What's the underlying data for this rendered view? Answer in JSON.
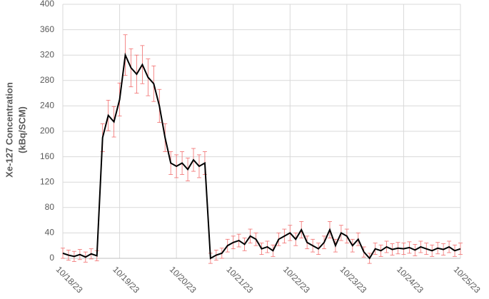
{
  "chart_data": {
    "type": "line",
    "ylabel": [
      "Xe-127 Concentration",
      "(kBq/SCM)"
    ],
    "xlim": [
      0,
      7
    ],
    "xticks": [
      {
        "value": 0,
        "label": "10/18/23"
      },
      {
        "value": 1,
        "label": "10/19/23"
      },
      {
        "value": 2,
        "label": "10/20/23"
      },
      {
        "value": 3,
        "label": "10/21/23"
      },
      {
        "value": 4,
        "label": "10/22/23"
      },
      {
        "value": 5,
        "label": "10/23/23"
      },
      {
        "value": 6,
        "label": "10/24/23"
      },
      {
        "value": 7,
        "label": "10/25/23"
      }
    ],
    "ylim": [
      0,
      400
    ],
    "yticks": [
      0,
      40,
      80,
      120,
      160,
      200,
      240,
      280,
      320,
      360,
      400
    ],
    "grid": true,
    "series": [
      {
        "color": "#000000",
        "error_color": "#f26d6d",
        "x": [
          0,
          0.1,
          0.2,
          0.3,
          0.4,
          0.5,
          0.6,
          0.7,
          0.8,
          0.9,
          1,
          1.1,
          1.2,
          1.3,
          1.4,
          1.5,
          1.6,
          1.7,
          1.8,
          1.9,
          2,
          2.1,
          2.2,
          2.3,
          2.4,
          2.5,
          2.6,
          2.7,
          2.8,
          2.9,
          3,
          3.1,
          3.2,
          3.3,
          3.4,
          3.5,
          3.6,
          3.7,
          3.8,
          3.9,
          4,
          4.1,
          4.2,
          4.3,
          4.4,
          4.5,
          4.6,
          4.7,
          4.8,
          4.9,
          5,
          5.1,
          5.2,
          5.3,
          5.4,
          5.5,
          5.6,
          5.7,
          5.8,
          5.9,
          6,
          6.1,
          6.2,
          6.3,
          6.4,
          6.5,
          6.6,
          6.7,
          6.8,
          6.9,
          7
        ],
        "values": [
          8,
          5,
          3,
          6,
          2,
          7,
          4,
          190,
          225,
          215,
          250,
          320,
          300,
          290,
          305,
          285,
          275,
          240,
          190,
          150,
          145,
          150,
          140,
          155,
          145,
          150,
          0,
          5,
          8,
          20,
          25,
          28,
          22,
          35,
          30,
          15,
          18,
          12,
          30,
          35,
          40,
          30,
          45,
          25,
          20,
          15,
          25,
          45,
          20,
          40,
          35,
          20,
          30,
          10,
          0,
          15,
          12,
          18,
          14,
          16,
          15,
          17,
          13,
          18,
          15,
          12,
          16,
          14,
          18,
          12,
          15
        ],
        "errors": [
          8,
          8,
          8,
          8,
          8,
          8,
          8,
          22,
          24,
          24,
          26,
          32,
          30,
          30,
          30,
          29,
          28,
          26,
          22,
          18,
          18,
          18,
          18,
          18,
          18,
          18,
          8,
          8,
          8,
          10,
          10,
          10,
          10,
          11,
          10,
          9,
          9,
          9,
          10,
          11,
          12,
          10,
          13,
          10,
          10,
          9,
          10,
          13,
          10,
          12,
          11,
          10,
          10,
          8,
          8,
          9,
          9,
          9,
          9,
          9,
          9,
          9,
          9,
          9,
          9,
          9,
          9,
          9,
          9,
          9,
          9
        ]
      }
    ]
  }
}
